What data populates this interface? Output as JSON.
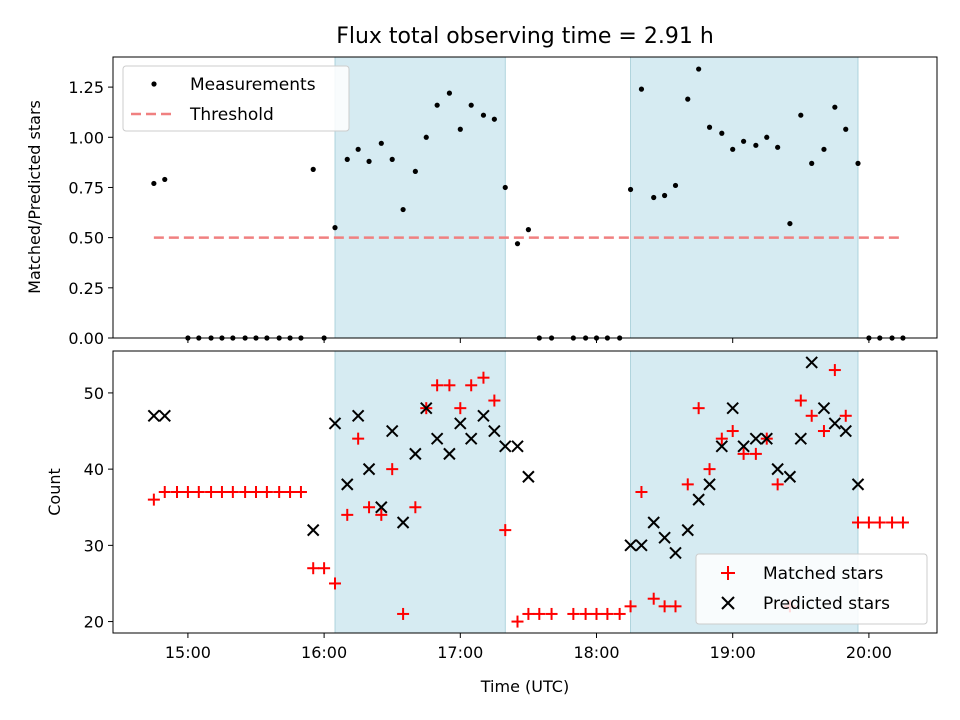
{
  "title": "Flux total observing time = 2.91 h",
  "chart_data": [
    {
      "type": "scatter",
      "ylabel": "Matched/Predicted stars",
      "xlim": [
        14.45,
        20.5
      ],
      "ylim": [
        0,
        1.4
      ],
      "y_ticks": [
        0,
        0.25,
        0.5,
        0.75,
        1.0,
        1.25
      ],
      "y_tick_labels": [
        "0.00",
        "0.25",
        "0.50",
        "0.75",
        "1.00",
        "1.25"
      ],
      "shaded_intervals": [
        [
          16.08,
          17.33
        ],
        [
          18.25,
          19.92
        ]
      ],
      "legend": {
        "position": "top-left",
        "entries": [
          {
            "label": "Measurements",
            "marker": "dot",
            "color": "#000000"
          },
          {
            "label": "Threshold",
            "marker": "dashed-line",
            "color": "#f08080"
          }
        ]
      },
      "series": [
        {
          "name": "Measurements",
          "x": [
            14.75,
            14.83,
            15.0,
            15.08,
            15.17,
            15.25,
            15.33,
            15.42,
            15.5,
            15.58,
            15.67,
            15.75,
            15.83,
            15.92,
            16.0,
            16.08,
            16.17,
            16.25,
            16.33,
            16.42,
            16.5,
            16.58,
            16.67,
            16.75,
            16.83,
            16.92,
            17.0,
            17.08,
            17.17,
            17.25,
            17.33,
            17.42,
            17.5,
            17.58,
            17.67,
            17.83,
            17.92,
            18.0,
            18.08,
            18.17,
            18.25,
            18.33,
            18.42,
            18.5,
            18.58,
            18.67,
            18.75,
            18.83,
            18.92,
            19.0,
            19.08,
            19.17,
            19.25,
            19.33,
            19.42,
            19.5,
            19.58,
            19.67,
            19.75,
            19.83,
            19.92,
            20.0,
            20.08,
            20.17,
            20.25
          ],
          "y": [
            0.77,
            0.79,
            0.0,
            0.0,
            0.0,
            0.0,
            0.0,
            0.0,
            0.0,
            0.0,
            0.0,
            0.0,
            0.0,
            0.84,
            0.0,
            0.55,
            0.89,
            0.94,
            0.88,
            0.97,
            0.89,
            0.64,
            0.83,
            1.0,
            1.16,
            1.22,
            1.04,
            1.16,
            1.11,
            1.09,
            0.75,
            0.47,
            0.54,
            0.0,
            0.0,
            0.0,
            0.0,
            0.0,
            0.0,
            0.0,
            0.74,
            1.24,
            0.7,
            0.71,
            0.76,
            1.19,
            1.34,
            1.05,
            1.02,
            0.94,
            0.98,
            0.96,
            1.0,
            0.95,
            0.57,
            1.11,
            0.87,
            0.94,
            1.15,
            1.04,
            0.87,
            0.0,
            0.0,
            0.0,
            0.0
          ]
        },
        {
          "name": "Threshold",
          "type": "line",
          "x": [
            14.75,
            20.25
          ],
          "y": [
            0.5,
            0.5
          ]
        }
      ]
    },
    {
      "type": "scatter",
      "xlabel": "Time (UTC)",
      "ylabel": "Count",
      "xlim": [
        14.45,
        20.5
      ],
      "ylim": [
        18.5,
        55.5
      ],
      "y_ticks": [
        20,
        30,
        40,
        50
      ],
      "x_ticks": [
        15,
        16,
        17,
        18,
        19,
        20
      ],
      "x_tick_labels": [
        "15:00",
        "16:00",
        "17:00",
        "18:00",
        "19:00",
        "20:00"
      ],
      "shaded_intervals": [
        [
          16.08,
          17.33
        ],
        [
          18.25,
          19.92
        ]
      ],
      "legend": {
        "position": "bottom-right",
        "entries": [
          {
            "label": "Matched stars",
            "marker": "plus",
            "color": "#ff0000"
          },
          {
            "label": "Predicted stars",
            "marker": "x",
            "color": "#000000"
          }
        ]
      },
      "series": [
        {
          "name": "Matched stars",
          "x": [
            14.75,
            14.83,
            14.92,
            15.0,
            15.08,
            15.17,
            15.25,
            15.33,
            15.42,
            15.5,
            15.58,
            15.67,
            15.75,
            15.83,
            15.92,
            16.0,
            16.08,
            16.17,
            16.25,
            16.33,
            16.42,
            16.5,
            16.58,
            16.67,
            16.75,
            16.83,
            16.92,
            17.0,
            17.08,
            17.17,
            17.25,
            17.33,
            17.42,
            17.5,
            17.58,
            17.67,
            17.83,
            17.92,
            18.0,
            18.08,
            18.17,
            18.25,
            18.33,
            18.42,
            18.5,
            18.58,
            18.67,
            18.75,
            18.83,
            18.92,
            19.0,
            19.08,
            19.17,
            19.25,
            19.33,
            19.42,
            19.5,
            19.58,
            19.67,
            19.75,
            19.83,
            19.92,
            20.0,
            20.08,
            20.17,
            20.25
          ],
          "y": [
            36,
            37,
            37,
            37,
            37,
            37,
            37,
            37,
            37,
            37,
            37,
            37,
            37,
            37,
            27,
            27,
            25,
            34,
            44,
            35,
            34,
            40,
            21,
            35,
            48,
            51,
            51,
            48,
            51,
            52,
            49,
            32,
            20,
            21,
            21,
            21,
            21,
            21,
            21,
            21,
            21,
            22,
            37,
            23,
            22,
            22,
            38,
            48,
            40,
            44,
            45,
            42,
            42,
            44,
            38,
            22,
            49,
            47,
            45,
            53,
            47,
            33,
            33,
            33,
            33,
            33
          ]
        },
        {
          "name": "Predicted stars",
          "x": [
            14.75,
            14.83,
            15.92,
            16.08,
            16.17,
            16.25,
            16.33,
            16.42,
            16.5,
            16.58,
            16.67,
            16.75,
            16.83,
            16.92,
            17.0,
            17.08,
            17.17,
            17.25,
            17.33,
            17.42,
            17.5,
            18.25,
            18.33,
            18.42,
            18.5,
            18.58,
            18.67,
            18.75,
            18.83,
            18.92,
            19.0,
            19.08,
            19.17,
            19.25,
            19.33,
            19.42,
            19.5,
            19.58,
            19.67,
            19.75,
            19.83,
            19.92
          ],
          "y": [
            47,
            47,
            32,
            46,
            38,
            47,
            40,
            35,
            45,
            33,
            42,
            48,
            44,
            42,
            46,
            44,
            47,
            45,
            43,
            43,
            39,
            30,
            30,
            33,
            31,
            29,
            32,
            36,
            38,
            43,
            48,
            43,
            44,
            44,
            40,
            39,
            44,
            54,
            48,
            46,
            45,
            38
          ]
        }
      ]
    }
  ]
}
